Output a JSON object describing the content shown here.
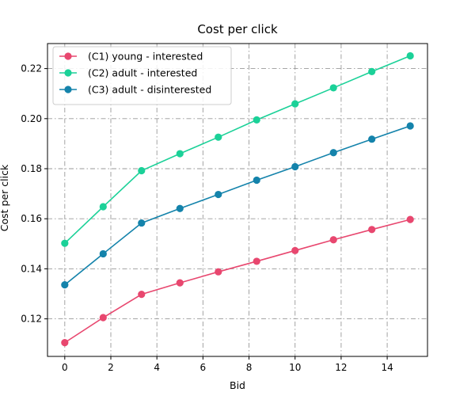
{
  "chart_data": {
    "type": "line",
    "title": "Cost per click",
    "xlabel": "Bid",
    "ylabel": "Cost per click",
    "xlim": [
      -0.75,
      15.75
    ],
    "ylim": [
      0.105,
      0.23
    ],
    "x_ticks": [
      0,
      2,
      4,
      6,
      8,
      10,
      12,
      14
    ],
    "y_ticks": [
      0.12,
      0.14,
      0.16,
      0.18,
      0.2,
      0.22
    ],
    "x_tick_labels": [
      "0",
      "2",
      "4",
      "6",
      "8",
      "10",
      "12",
      "14"
    ],
    "y_tick_labels": [
      "0.12",
      "0.14",
      "0.16",
      "0.18",
      "0.20",
      "0.22"
    ],
    "grid": true,
    "legend_position": "upper-left",
    "x": [
      0,
      1.667,
      3.333,
      5.0,
      6.667,
      8.333,
      10.0,
      11.667,
      13.333,
      15.0
    ],
    "series": [
      {
        "name": "(C1) young - interested",
        "color": "#e8476f",
        "values": [
          0.1105,
          0.1205,
          0.1298,
          0.1344,
          0.1388,
          0.143,
          0.1473,
          0.1516,
          0.1557,
          0.1597
        ]
      },
      {
        "name": "(C2) adult - interested",
        "color": "#1bd198",
        "values": [
          0.1502,
          0.1648,
          0.1792,
          0.186,
          0.1926,
          0.1995,
          0.2059,
          0.2123,
          0.2188,
          0.2251
        ]
      },
      {
        "name": "(C3) adult - disinterested",
        "color": "#1483ab",
        "values": [
          0.1336,
          0.146,
          0.1583,
          0.1641,
          0.1697,
          0.1754,
          0.1808,
          0.1864,
          0.1918,
          0.1971
        ]
      }
    ]
  }
}
